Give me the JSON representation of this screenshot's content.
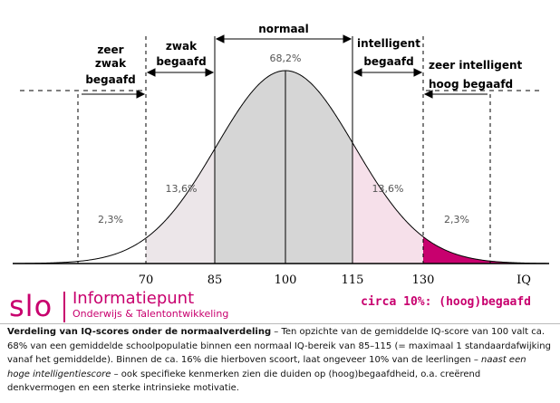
{
  "diagram": {
    "regions": {
      "normaal": "normaal",
      "zeer_zwak": [
        "zeer",
        "zwak",
        "begaafd"
      ],
      "zwak": [
        "zwak",
        "begaafd"
      ],
      "intelligent": [
        "intelligent",
        "begaafd"
      ],
      "zeer_intelligent": [
        "zeer intelligent",
        "hoog begaafd"
      ]
    },
    "percentages": {
      "center": "68,2%",
      "left_mid": "13,6%",
      "right_mid": "13,6%",
      "left_tail": "2,3%",
      "right_tail": "2,3%"
    },
    "ticks": [
      "70",
      "85",
      "100",
      "115",
      "130"
    ],
    "axis_label": "IQ",
    "colors": {
      "accent": "#c8006e",
      "center_fill": "#d6d6d6",
      "left_mid_fill": "#ece6e9",
      "right_mid_fill": "#f6e0ea",
      "tail_fill": "#c8006e"
    }
  },
  "brand": {
    "logo": "slo",
    "title": "Informatiepunt",
    "subtitle": "Onderwijs & Talentontwikkeling"
  },
  "note": "circa 10%: (hoog)begaafd",
  "caption": {
    "lead": "Verdeling van IQ-scores onder de normaalverdeling",
    "part1": " – Ten opzichte van de gemiddelde IQ-score van 100 valt ca. 68% van een gemiddelde schoolpopulatie binnen een normaal IQ-bereik van 85–115 (= maximaal 1 standaardafwijking vanaf het gemiddelde). Binnen de ca. 16% die hierboven scoort, laat ongeveer 10% van de leerlingen – ",
    "emph": "naast een hoge intelligentiescore",
    "part2": " – ook specifieke kenmerken zien die duiden op (hoog)begaafdheid, o.a. creërend denkvermogen en een sterke intrinsieke motivatie."
  }
}
